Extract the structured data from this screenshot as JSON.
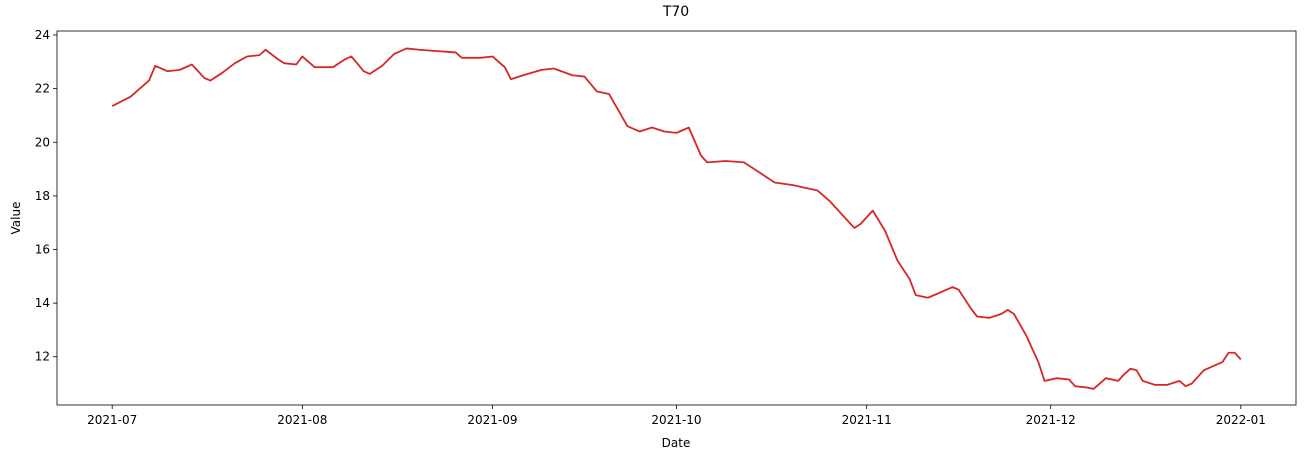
{
  "chart_data": {
    "type": "line",
    "title": "T70",
    "x_label": "Date",
    "y_label": "Value",
    "color": "#d62728",
    "x": [
      "2021-07-01",
      "2021-07-04",
      "2021-07-07",
      "2021-07-08",
      "2021-07-10",
      "2021-07-12",
      "2021-07-14",
      "2021-07-16",
      "2021-07-17",
      "2021-07-19",
      "2021-07-21",
      "2021-07-23",
      "2021-07-25",
      "2021-07-26",
      "2021-07-28",
      "2021-07-29",
      "2021-07-31",
      "2021-08-01",
      "2021-08-03",
      "2021-08-06",
      "2021-08-08",
      "2021-08-09",
      "2021-08-11",
      "2021-08-12",
      "2021-08-14",
      "2021-08-16",
      "2021-08-18",
      "2021-08-20",
      "2021-08-23",
      "2021-08-26",
      "2021-08-27",
      "2021-08-30",
      "2021-09-01",
      "2021-09-03",
      "2021-09-04",
      "2021-09-06",
      "2021-09-09",
      "2021-09-11",
      "2021-09-14",
      "2021-09-16",
      "2021-09-18",
      "2021-09-20",
      "2021-09-22",
      "2021-09-23",
      "2021-09-25",
      "2021-09-27",
      "2021-09-29",
      "2021-10-01",
      "2021-10-03",
      "2021-10-05",
      "2021-10-06",
      "2021-10-09",
      "2021-10-12",
      "2021-10-15",
      "2021-10-17",
      "2021-10-20",
      "2021-10-22",
      "2021-10-24",
      "2021-10-26",
      "2021-10-28",
      "2021-10-30",
      "2021-10-31",
      "2021-11-02",
      "2021-11-04",
      "2021-11-06",
      "2021-11-08",
      "2021-11-09",
      "2021-11-11",
      "2021-11-13",
      "2021-11-15",
      "2021-11-16",
      "2021-11-18",
      "2021-11-19",
      "2021-11-21",
      "2021-11-23",
      "2021-11-24",
      "2021-11-25",
      "2021-11-27",
      "2021-11-28",
      "2021-11-29",
      "2021-11-30",
      "2021-12-02",
      "2021-12-04",
      "2021-12-05",
      "2021-12-07",
      "2021-12-08",
      "2021-12-10",
      "2021-12-12",
      "2021-12-13",
      "2021-12-14",
      "2021-12-15",
      "2021-12-16",
      "2021-12-18",
      "2021-12-20",
      "2021-12-22",
      "2021-12-23",
      "2021-12-24",
      "2021-12-26",
      "2021-12-27",
      "2021-12-29",
      "2021-12-30",
      "2021-12-31",
      "2022-01-01"
    ],
    "values": [
      21.35,
      21.7,
      22.3,
      22.85,
      22.65,
      22.7,
      22.9,
      22.4,
      22.3,
      22.6,
      22.95,
      23.2,
      23.25,
      23.45,
      23.1,
      22.95,
      22.9,
      23.2,
      22.8,
      22.8,
      23.1,
      23.2,
      22.65,
      22.55,
      22.85,
      23.3,
      23.5,
      23.45,
      23.4,
      23.35,
      23.15,
      23.15,
      23.2,
      22.8,
      22.35,
      22.5,
      22.7,
      22.75,
      22.5,
      22.45,
      21.9,
      21.8,
      21.0,
      20.6,
      20.4,
      20.55,
      20.4,
      20.35,
      20.55,
      19.5,
      19.25,
      19.3,
      19.25,
      18.8,
      18.5,
      18.4,
      18.3,
      18.2,
      17.8,
      17.3,
      16.8,
      16.95,
      17.45,
      16.7,
      15.6,
      14.9,
      14.3,
      14.2,
      14.4,
      14.6,
      14.5,
      13.8,
      13.5,
      13.45,
      13.6,
      13.75,
      13.6,
      12.8,
      12.3,
      11.8,
      11.1,
      11.2,
      11.15,
      10.9,
      10.85,
      10.8,
      11.2,
      11.1,
      11.35,
      11.55,
      11.5,
      11.1,
      10.95,
      10.95,
      11.1,
      10.9,
      11.0,
      11.5,
      11.6,
      11.8,
      12.15,
      12.15,
      11.9
    ],
    "xlim": [
      "2021-06-22",
      "2022-01-10"
    ],
    "xticks": [
      {
        "value": "2021-07-01",
        "label": "2021-07"
      },
      {
        "value": "2021-08-01",
        "label": "2021-08"
      },
      {
        "value": "2021-09-01",
        "label": "2021-09"
      },
      {
        "value": "2021-10-01",
        "label": "2021-10"
      },
      {
        "value": "2021-11-01",
        "label": "2021-11"
      },
      {
        "value": "2021-12-01",
        "label": "2021-12"
      },
      {
        "value": "2022-01-01",
        "label": "2022-01"
      }
    ],
    "ylim": [
      10.2,
      24.15
    ],
    "yticks": [
      12,
      14,
      16,
      18,
      20,
      22,
      24
    ],
    "grid": false
  }
}
